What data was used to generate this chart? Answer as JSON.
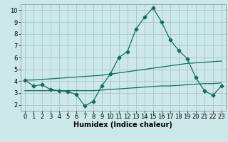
{
  "xlabel": "Humidex (Indice chaleur)",
  "background_color": "#cce8e8",
  "grid_color": "#aacccc",
  "line_color": "#1a6b5a",
  "x": [
    0,
    1,
    2,
    3,
    4,
    5,
    6,
    7,
    8,
    9,
    10,
    11,
    12,
    13,
    14,
    15,
    16,
    17,
    18,
    19,
    20,
    21,
    22,
    23
  ],
  "y_main": [
    4.1,
    3.6,
    3.7,
    3.3,
    3.2,
    3.1,
    2.9,
    1.9,
    2.3,
    3.6,
    4.6,
    6.0,
    6.5,
    8.4,
    9.4,
    10.2,
    9.0,
    7.5,
    6.6,
    5.9,
    4.3,
    3.2,
    2.8,
    3.6
  ],
  "y_upper": [
    4.1,
    4.1,
    4.15,
    4.2,
    4.25,
    4.3,
    4.35,
    4.4,
    4.45,
    4.5,
    4.6,
    4.7,
    4.8,
    4.9,
    5.0,
    5.1,
    5.2,
    5.3,
    5.4,
    5.5,
    5.55,
    5.6,
    5.65,
    5.7
  ],
  "y_lower": [
    3.2,
    3.2,
    3.2,
    3.2,
    3.2,
    3.2,
    3.2,
    3.2,
    3.2,
    3.25,
    3.3,
    3.35,
    3.4,
    3.45,
    3.5,
    3.55,
    3.6,
    3.6,
    3.65,
    3.7,
    3.75,
    3.8,
    3.8,
    3.85
  ],
  "ylim": [
    1.5,
    10.5
  ],
  "yticks": [
    2,
    3,
    4,
    5,
    6,
    7,
    8,
    9,
    10
  ],
  "xlim": [
    -0.5,
    23.5
  ],
  "xticks": [
    0,
    1,
    2,
    3,
    4,
    5,
    6,
    7,
    8,
    9,
    10,
    11,
    12,
    13,
    14,
    15,
    16,
    17,
    18,
    19,
    20,
    21,
    22,
    23
  ],
  "xlabel_fontsize": 7,
  "tick_fontsize": 6
}
